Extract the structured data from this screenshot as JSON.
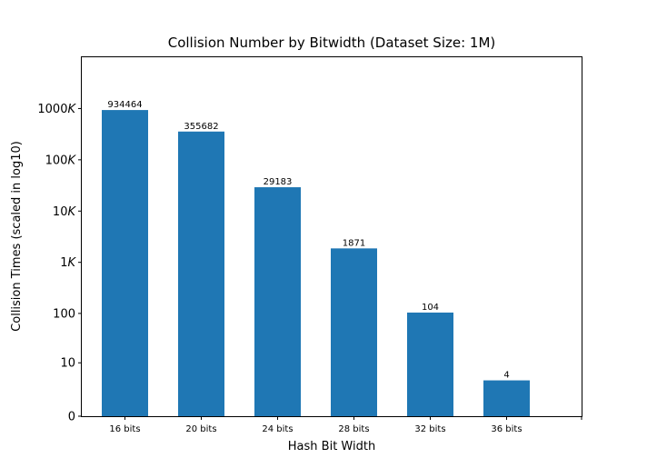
{
  "chart_data": {
    "type": "bar",
    "title": "Collision Number by Bitwidth (Dataset Size: 1M)",
    "xlabel": "Hash Bit Width",
    "ylabel": "Collision Times (scaled in log10)",
    "categories": [
      "16 bits",
      "20 bits",
      "24 bits",
      "28 bits",
      "32 bits",
      "36 bits"
    ],
    "values": [
      934464,
      355682,
      29183,
      1871,
      104,
      4
    ],
    "data_labels": [
      "934464",
      "355682",
      "29183",
      "1871",
      "104",
      "4"
    ],
    "y_scale": "log10(1+value)",
    "ylim_log10": [
      0,
      7
    ],
    "yticks": [
      {
        "value": 0,
        "label": "0"
      },
      {
        "value": 10,
        "label": "10"
      },
      {
        "value": 100,
        "label": "100"
      },
      {
        "value": 1000,
        "label": "1K"
      },
      {
        "value": 10000,
        "label": "10K"
      },
      {
        "value": 100000,
        "label": "100K"
      },
      {
        "value": 1000000,
        "label": "1000K"
      }
    ],
    "bar_color": "#1f77b4",
    "grid": false,
    "legend": "none"
  }
}
